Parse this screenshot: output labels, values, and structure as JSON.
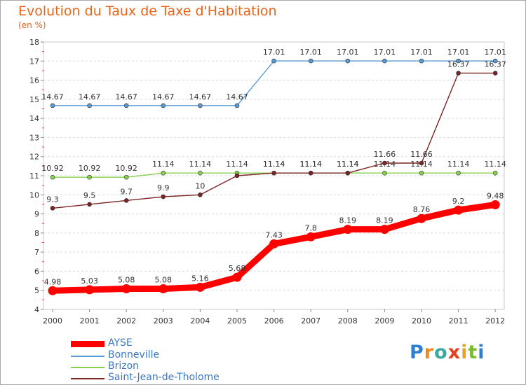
{
  "chart_data": {
    "type": "line",
    "title": "Evolution du Taux de Taxe d'Habitation",
    "subtitle": "(en %)",
    "x": [
      2000,
      2001,
      2002,
      2003,
      2004,
      2005,
      2006,
      2007,
      2008,
      2009,
      2010,
      2011,
      2012
    ],
    "ylim": [
      4,
      18
    ],
    "yticks": [
      4,
      5,
      6,
      7,
      8,
      9,
      10,
      11,
      12,
      13,
      14,
      15,
      16,
      17,
      18
    ],
    "grid": "horizontal dashed",
    "legend": "bottom-left",
    "series": [
      {
        "name": "Bonneville",
        "color": "#5b9bd5",
        "values": [
          14.67,
          14.67,
          14.67,
          14.67,
          14.67,
          14.67,
          17.01,
          17.01,
          17.01,
          17.01,
          17.01,
          17.01,
          17.01
        ],
        "labels": [
          "14.67",
          "14.67",
          "14.67",
          "14.67",
          "14.67",
          "14.67",
          "17.01",
          "17.01",
          "17.01",
          "17.01",
          "17.01",
          "17.01",
          "17.01"
        ]
      },
      {
        "name": "Brizon",
        "color": "#86d04a",
        "values": [
          10.92,
          10.92,
          10.92,
          11.14,
          11.14,
          11.14,
          11.14,
          11.14,
          11.14,
          11.14,
          11.14,
          11.14,
          11.14
        ],
        "labels": [
          "10.92",
          "10.92",
          "10.92",
          "11.14",
          "11.14",
          "11.14",
          "11.14",
          "11.14",
          "11.14",
          "11.14",
          "11.14",
          "11.14",
          "11.14"
        ]
      },
      {
        "name": "Saint-Jean-de-Tholome",
        "color": "#7a2424",
        "values": [
          9.3,
          9.5,
          9.7,
          9.9,
          10,
          11,
          11.14,
          11.14,
          11.14,
          11.66,
          11.66,
          16.37,
          16.37
        ],
        "labels": [
          "9.3",
          "9.5",
          "9.7",
          "9.9",
          "10",
          "",
          "11.14",
          "11.14",
          "11.14",
          "11.66",
          "11.66",
          "16.37",
          "16.37"
        ]
      },
      {
        "name": "AYSE",
        "color": "#ff0000",
        "values": [
          4.98,
          5.03,
          5.08,
          5.08,
          5.16,
          5.68,
          7.43,
          7.8,
          8.19,
          8.19,
          8.76,
          9.2,
          9.48
        ],
        "labels": [
          "4.98",
          "5.03",
          "5.08",
          "5.08",
          "5.16",
          "5.68",
          "7.43",
          "7.8",
          "8.19",
          "8.19",
          "8.76",
          "9.2",
          "9.48"
        ]
      }
    ]
  },
  "legend_items": [
    "AYSE",
    "Bonneville",
    "Brizon",
    "Saint-Jean-de-Tholome"
  ],
  "logo": {
    "letters": [
      "P",
      "r",
      "o",
      "x",
      "i",
      "t",
      "i"
    ],
    "colors": [
      "#2f7fd1",
      "#f08a1c",
      "#3aa9a0",
      "#e3401e",
      "#e9a51b",
      "#7cbb2f",
      "#2f7fd1"
    ]
  }
}
